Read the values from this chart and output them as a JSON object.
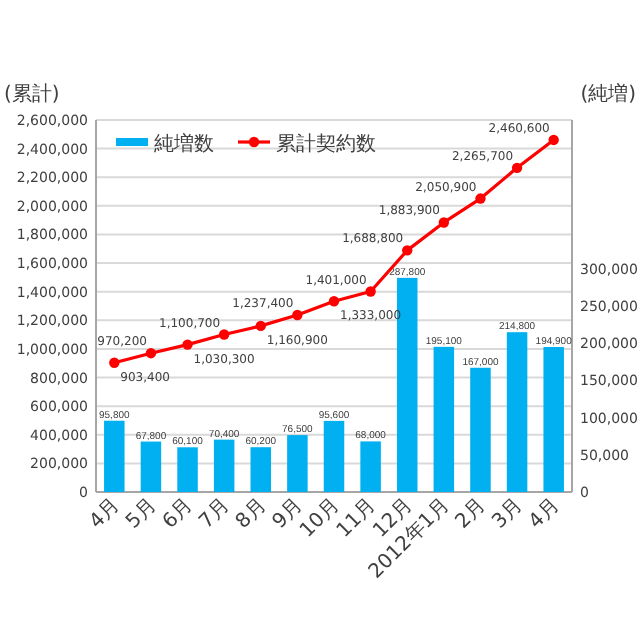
{
  "chart_data": {
    "type": "bar",
    "ylabel": "(累計)",
    "y2label": "(純増)",
    "categories": [
      "4月",
      "5月",
      "6月",
      "7月",
      "8月",
      "9月",
      "10月",
      "11月",
      "12月",
      "2012年1月",
      "2月",
      "3月",
      "4月"
    ],
    "series": [
      {
        "name": "純増数",
        "type": "bar",
        "axis": "y2",
        "color": "#00b0f0",
        "values": [
          95800,
          67800,
          60100,
          70400,
          60200,
          76500,
          95600,
          68000,
          287800,
          195100,
          167000,
          214800,
          194900
        ],
        "value_labels": [
          "95,800",
          "67,800",
          "60,100",
          "70,400",
          "60,200",
          "76,500",
          "95,600",
          "68,000",
          "287,800",
          "195,100",
          "167,000",
          "214,800",
          "194,900"
        ]
      },
      {
        "name": "累計契約数",
        "type": "line",
        "color": "#ff0000",
        "values": [
          903400,
          970200,
          1030300,
          1100700,
          1160900,
          1237400,
          1333000,
          1401000,
          1688800,
          1883900,
          2050900,
          2265700,
          2460600
        ],
        "value_labels": [
          "903,400",
          "970,200",
          "1,030,300",
          "1,100,700",
          "1,160,900",
          "1,237,400",
          "1,333,000",
          "1,401,000",
          "1,688,800",
          "1,883,900",
          "2,050,900",
          "2,265,700",
          "2,460,600"
        ]
      }
    ],
    "ylim": [
      0,
      2600000
    ],
    "yticks": [
      0,
      {
        "value": 200000,
        "label": "200,000"
      },
      {
        "value": 400000,
        "label": "400,000"
      },
      {
        "value": 600000,
        "label": "600,000"
      },
      {
        "value": 800000,
        "label": "800,000"
      },
      {
        "value": 1000000,
        "label": "1,000,000"
      },
      {
        "value": 1200000,
        "label": "1,200,000"
      },
      {
        "value": 1400000,
        "label": "1,400,000"
      },
      {
        "value": 1600000,
        "label": "1,600,000"
      },
      {
        "value": 1800000,
        "label": "1,800,000"
      },
      {
        "value": 2000000,
        "label": "2,000,000"
      },
      {
        "value": 2200000,
        "label": "2,200,000"
      },
      {
        "value": 2400000,
        "label": "2,400,000"
      },
      {
        "value": 2600000,
        "label": "2,600,000"
      }
    ],
    "y2lim": [
      0,
      500000
    ],
    "y2ticks": [
      0,
      {
        "value": 50000,
        "label": "50,000"
      },
      {
        "value": 100000,
        "label": "100,000"
      },
      {
        "value": 150000,
        "label": "150,000"
      },
      {
        "value": 200000,
        "label": "200,000"
      },
      {
        "value": 250000,
        "label": "250,000"
      },
      {
        "value": 300000,
        "label": "300,000"
      }
    ],
    "grid": "y",
    "legend": "top left",
    "marker": "circle"
  }
}
